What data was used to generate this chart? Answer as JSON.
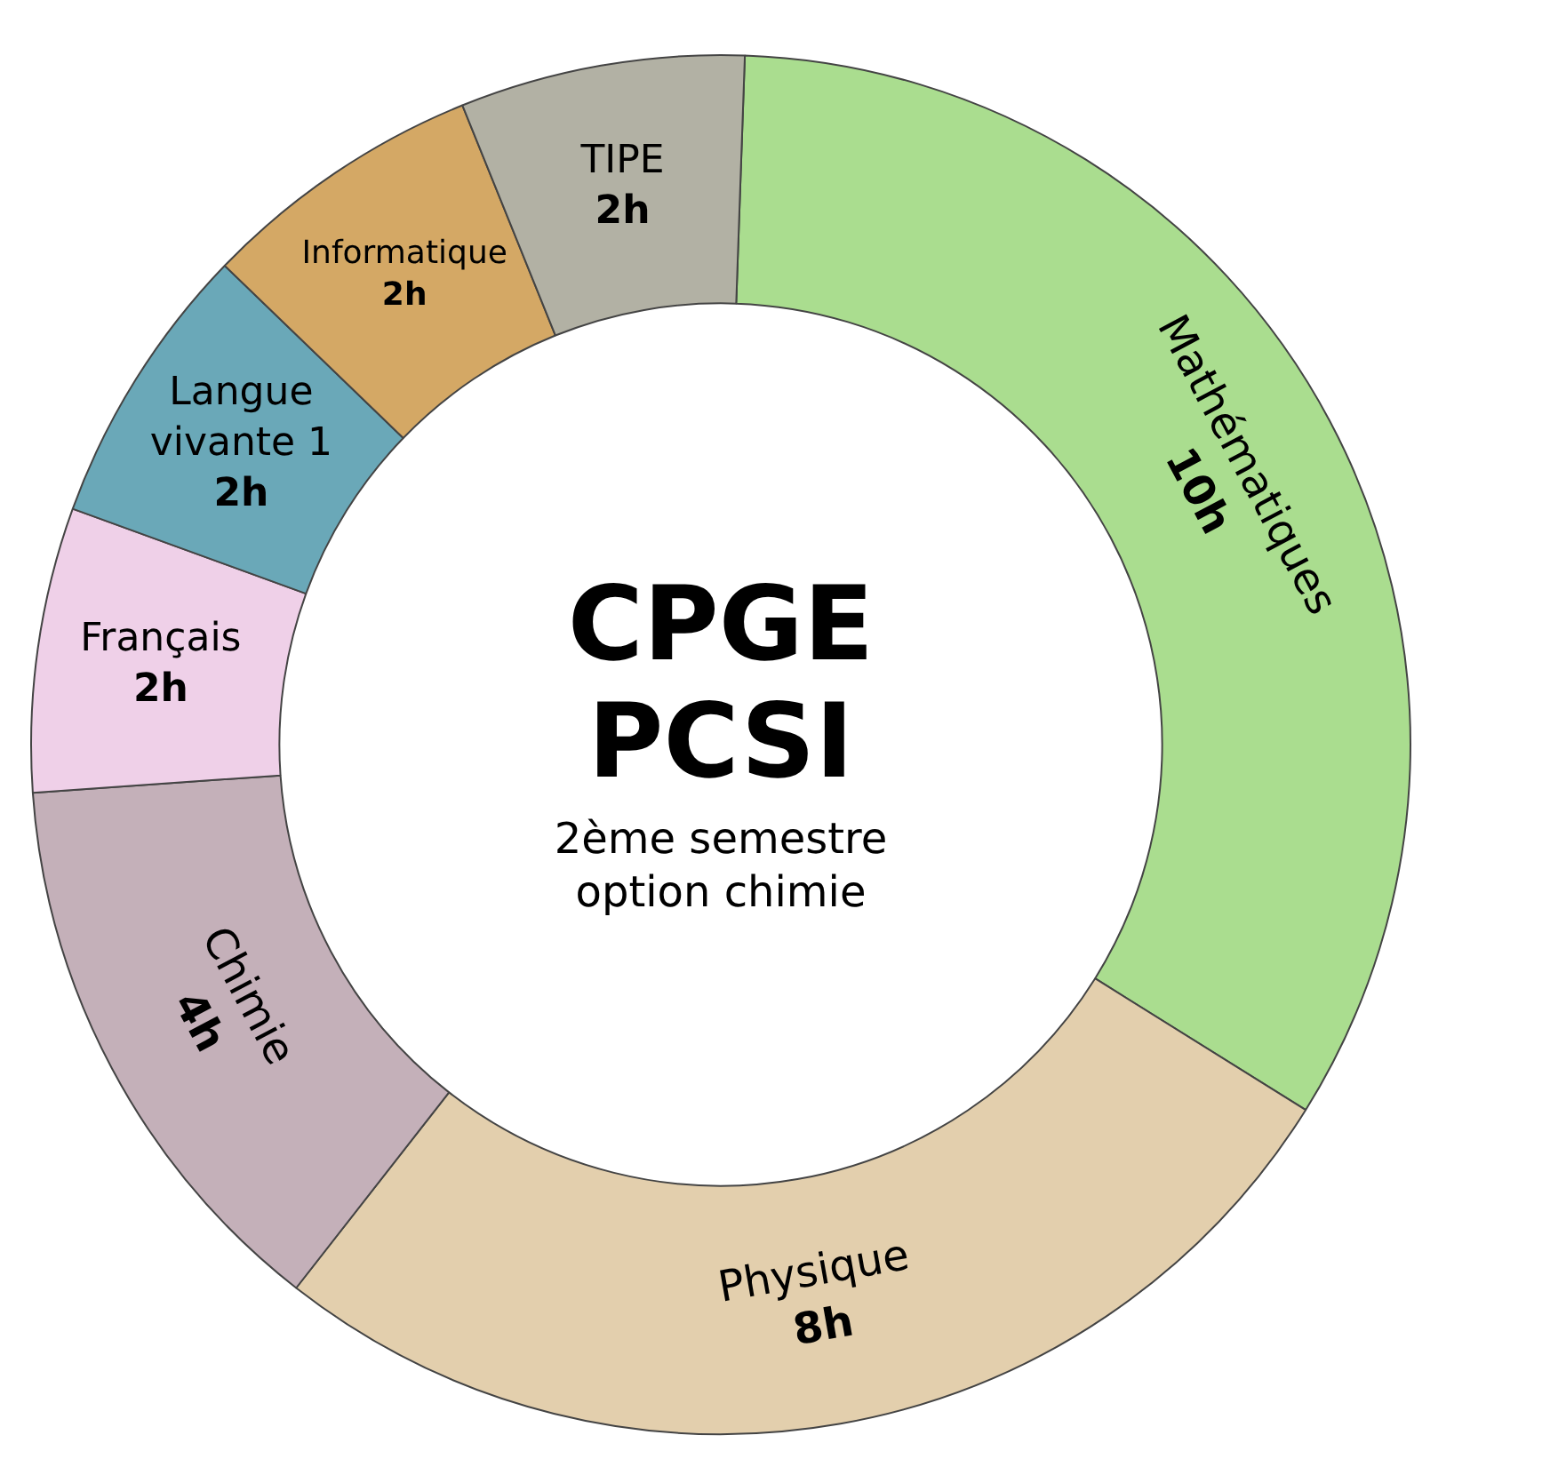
{
  "chart_data": {
    "type": "donut",
    "title": "CPGE PCSI",
    "subtitle": "2ème semestre option chimie",
    "categories": [
      "Mathématiques",
      "Physique",
      "Chimie",
      "Français",
      "Langue vivante 1",
      "Informatique",
      "TIPE"
    ],
    "values": [
      10,
      8,
      4,
      2,
      2,
      2,
      2
    ],
    "value_labels": [
      "10h",
      "8h",
      "4h",
      "2h",
      "2h",
      "2h",
      "2h"
    ],
    "colors": [
      "#aadd8f",
      "#e3cfad",
      "#c4b0b9",
      "#efd0e8",
      "#6aa8b8",
      "#d4a865",
      "#b2b1a4"
    ],
    "legend": false
  }
}
